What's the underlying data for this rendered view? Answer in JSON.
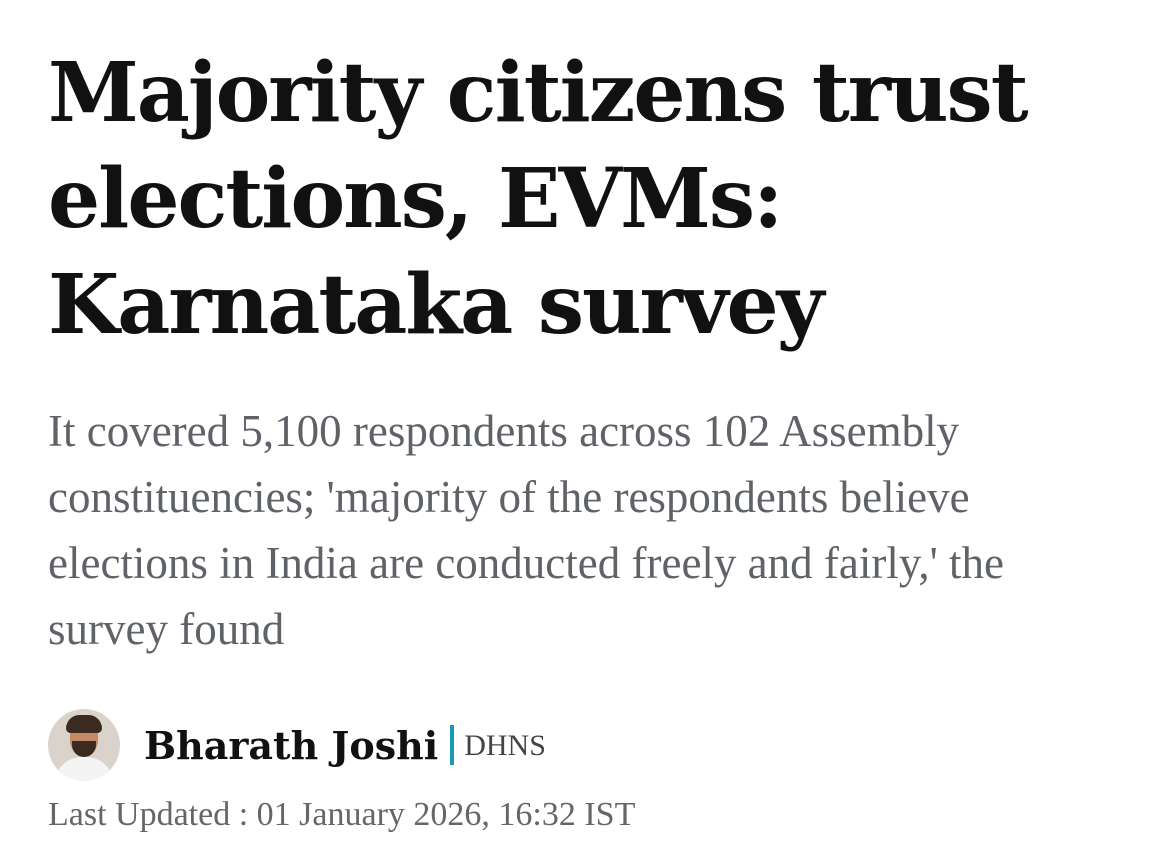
{
  "article": {
    "headline": "Majority citizens trust elections, EVMs: Karnataka survey",
    "summary": "It covered 5,100 respondents across 102 Assembly constituencies; 'majority of the respondents believe elections in India are conducted freely and fairly,' the survey found",
    "byline": {
      "author": "Bharath Joshi",
      "agency": "DHNS",
      "divider_color": "#1a9bb0"
    },
    "last_updated": "Last Updated : 01 January 2026, 16:32 IST"
  }
}
